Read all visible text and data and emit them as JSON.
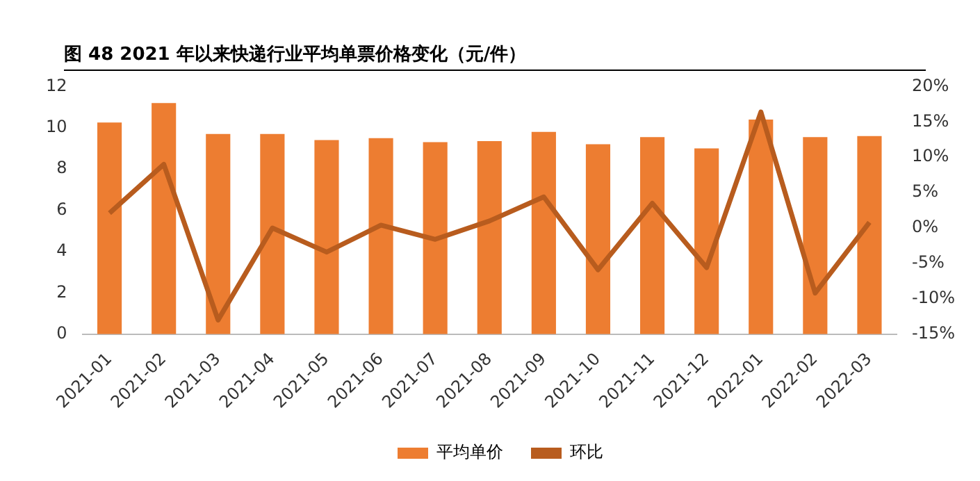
{
  "chart_data": {
    "type": "bar",
    "title": "图 48 2021 年以来快递行业平均单票价格变化（元/件）",
    "categories": [
      "2021-01",
      "2021-02",
      "2021-03",
      "2021-04",
      "2021-05",
      "2021-06",
      "2021-07",
      "2021-08",
      "2021-09",
      "2021-10",
      "2021-11",
      "2021-12",
      "2022-01",
      "2022-02",
      "2022-03"
    ],
    "series": [
      {
        "name": "平均单价",
        "color": "#ed7d31",
        "values": [
          10.25,
          11.2,
          9.7,
          9.7,
          9.4,
          9.5,
          9.3,
          9.35,
          9.8,
          9.2,
          9.55,
          9.0,
          10.4,
          9.55,
          9.6
        ]
      },
      {
        "name": "环比",
        "type": "line",
        "axis": "y2",
        "color": "#b85c1e",
        "values": [
          2.1,
          9.0,
          -13.0,
          0.0,
          -3.4,
          0.4,
          -1.6,
          1.0,
          4.4,
          -5.9,
          3.5,
          -5.6,
          16.4,
          -9.2,
          0.8
        ]
      }
    ],
    "ylim": [
      0,
      12
    ],
    "yticks": [
      0,
      2,
      4,
      6,
      8,
      10,
      12
    ],
    "y2lim": [
      -15,
      20
    ],
    "y2ticks": [
      {
        "value": -15,
        "label": "-15%"
      },
      {
        "value": -10,
        "label": "-10%"
      },
      {
        "value": -5,
        "label": "-5%"
      },
      {
        "value": 0,
        "label": "0%"
      },
      {
        "value": 5,
        "label": "5%"
      },
      {
        "value": 10,
        "label": "10%"
      },
      {
        "value": 15,
        "label": "15%"
      },
      {
        "value": 20,
        "label": "20%"
      }
    ],
    "grid": false,
    "legend": "bottom",
    "marker": "none"
  }
}
